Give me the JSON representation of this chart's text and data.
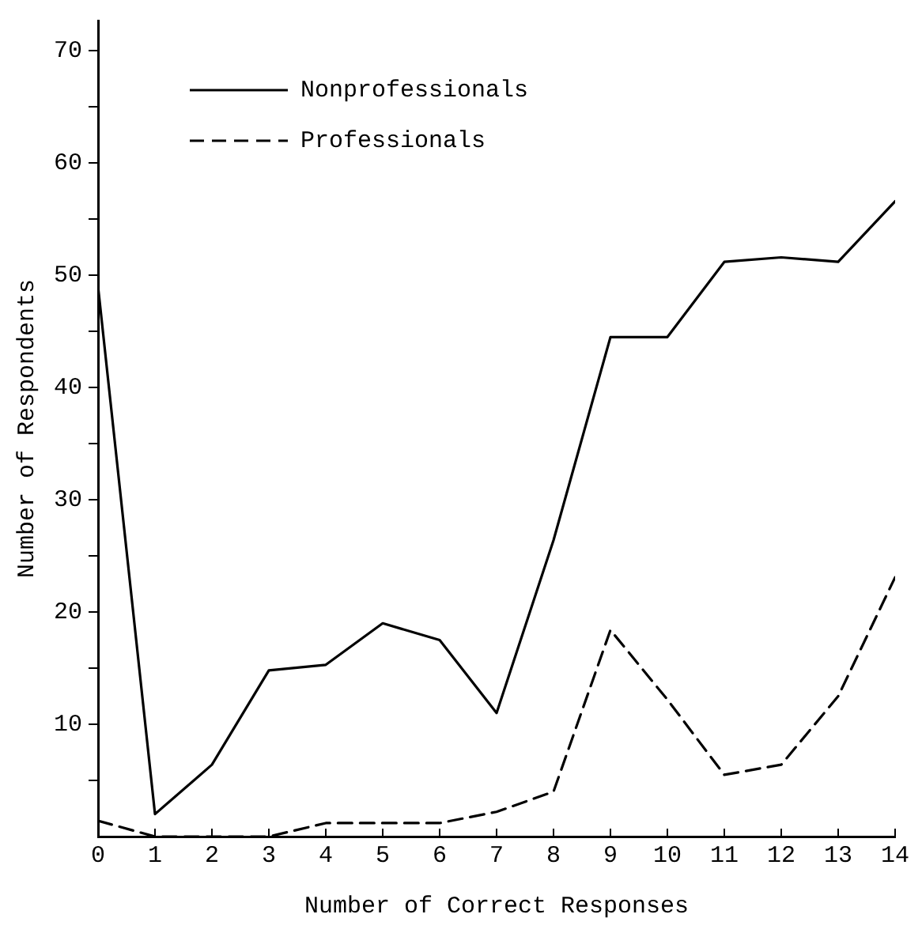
{
  "chart_data": {
    "type": "line",
    "xlabel": "Number of Correct Responses",
    "ylabel": "Number of Respondents",
    "x": [
      0,
      1,
      2,
      3,
      4,
      5,
      6,
      7,
      8,
      9,
      10,
      11,
      12,
      13,
      14
    ],
    "xlim": [
      0,
      14
    ],
    "xticks": [
      0,
      1,
      2,
      3,
      4,
      5,
      6,
      7,
      8,
      9,
      10,
      11,
      12,
      13,
      14
    ],
    "ylim": [
      0,
      72.7
    ],
    "yticks": [
      {
        "value": 5,
        "label": null
      },
      10,
      {
        "value": 15,
        "label": null
      },
      20,
      {
        "value": 25,
        "label": null
      },
      30,
      {
        "value": 35,
        "label": null
      },
      40,
      {
        "value": 45,
        "label": null
      },
      50,
      {
        "value": 55,
        "label": null
      },
      60,
      {
        "value": 65,
        "label": null
      },
      70
    ],
    "grid": false,
    "legend": "top left",
    "marker": "none",
    "series": [
      {
        "name": "Nonprofessionals",
        "color": "#000000",
        "line_style": "solid",
        "values": [
          49,
          2,
          6.4,
          14.8,
          15.3,
          19,
          17.5,
          11,
          26.4,
          44.5,
          44.5,
          51.2,
          51.6,
          51.2,
          56.6
        ]
      },
      {
        "name": "Professionals",
        "color": "#000000",
        "line_style": "dashed",
        "values": [
          1.4,
          0,
          0,
          0,
          1.2,
          1.2,
          1.2,
          2.2,
          4,
          18.4,
          12.2,
          5.5,
          6.4,
          12.5,
          23.1
        ]
      }
    ]
  }
}
